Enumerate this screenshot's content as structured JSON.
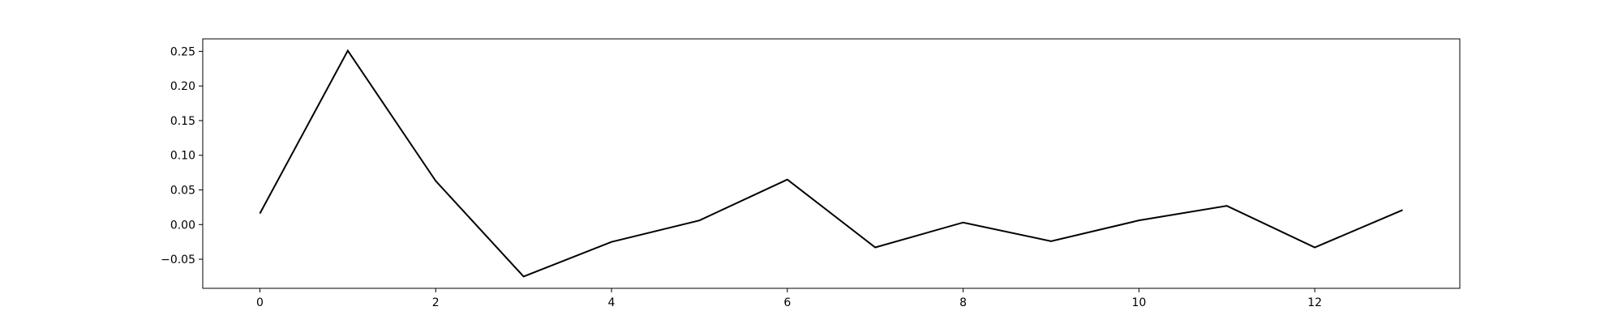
{
  "chart_data": {
    "type": "line",
    "title": "",
    "xlabel": "",
    "ylabel": "",
    "xlim": [
      -0.65,
      13.65
    ],
    "ylim": [
      -0.092,
      0.268
    ],
    "x_ticks": [
      0,
      2,
      4,
      6,
      8,
      10,
      12
    ],
    "x_tick_labels": [
      "0",
      "2",
      "4",
      "6",
      "8",
      "10",
      "12"
    ],
    "y_ticks": [
      -0.05,
      0.0,
      0.05,
      0.1,
      0.15,
      0.2,
      0.25
    ],
    "y_tick_labels": [
      "−0.05",
      "0.00",
      "0.05",
      "0.10",
      "0.15",
      "0.20",
      "0.25"
    ],
    "grid": false,
    "legend": "none",
    "series": [
      {
        "color": "#000000",
        "x": [
          0,
          1,
          2,
          3,
          4,
          5,
          6,
          7,
          8,
          9,
          10,
          11,
          12,
          13
        ],
        "y": [
          0.016,
          0.251,
          0.063,
          -0.075,
          -0.025,
          0.006,
          0.065,
          -0.033,
          0.003,
          -0.024,
          0.006,
          0.027,
          -0.033,
          0.021
        ]
      }
    ]
  }
}
